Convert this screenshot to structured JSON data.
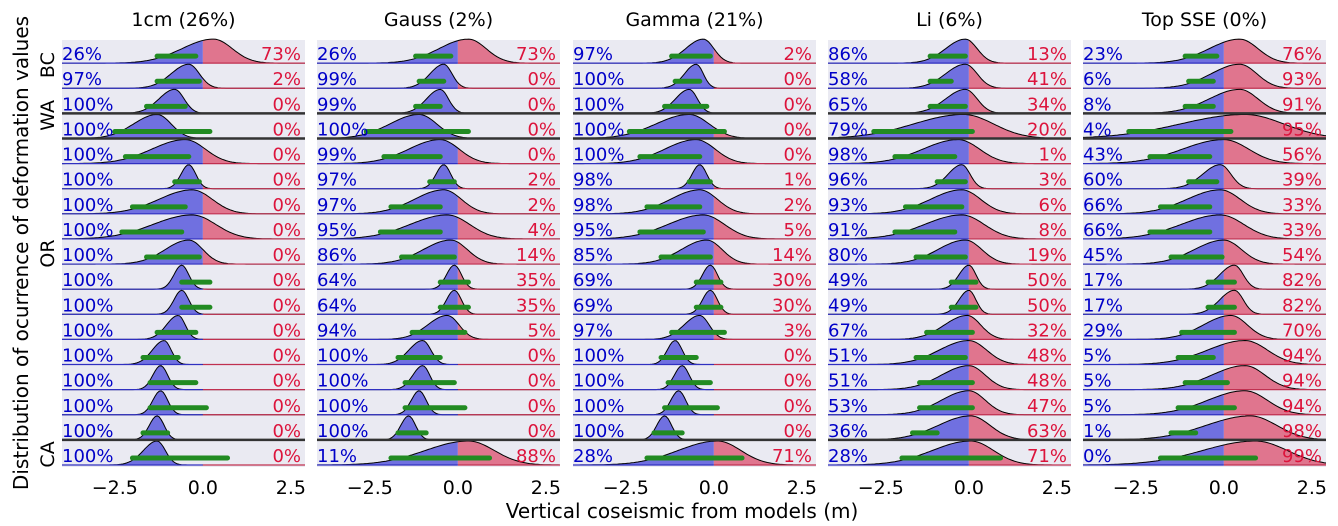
{
  "xlabel": "Vertical coseismic from models (m)",
  "ylabel": "Distribution of ocurrence of deformation values",
  "group_labels": [
    "BC",
    "WA",
    "OR",
    "CA"
  ],
  "chart_data": [
    {
      "type": "ridgeline",
      "title": "1cm (26%)",
      "xlim": [
        -4,
        2.9
      ],
      "xticks": [
        {
          "value": -2.5,
          "label": "−2.5"
        },
        {
          "value": 0,
          "label": "0.0"
        },
        {
          "value": 2.5,
          "label": "2.5"
        }
      ],
      "left": [
        26,
        97,
        100,
        100,
        100,
        100,
        100,
        100,
        100,
        100,
        100,
        100,
        100,
        100,
        100,
        100,
        100
      ],
      "left_labels": [
        "26%",
        "97%",
        "100%",
        "100%",
        "100%",
        "100%",
        "100%",
        "100%",
        "100%",
        "100%",
        "100%",
        "100%",
        "100%",
        "100%",
        "100%",
        "100%",
        "100%"
      ],
      "right": [
        73,
        2,
        0,
        0,
        0,
        0,
        0,
        0,
        0,
        0,
        0,
        0,
        0,
        0,
        0,
        0,
        0
      ],
      "right_labels": [
        "73%",
        "2%",
        "0%",
        "0%",
        "0%",
        "0%",
        "0%",
        "0%",
        "0%",
        "0%",
        "0%",
        "0%",
        "0%",
        "0%",
        "0%",
        "0%",
        "0%"
      ],
      "intervals": [
        [
          -1.3,
          -0.2
        ],
        [
          -1.3,
          -0.1
        ],
        [
          -1.6,
          -0.5
        ],
        [
          -2.5,
          0.2
        ],
        [
          -2.2,
          -0.4
        ],
        [
          -0.8,
          -0.1
        ],
        [
          -2.0,
          -0.5
        ],
        [
          -2.3,
          -0.6
        ],
        [
          -1.6,
          -0.1
        ],
        [
          -0.6,
          0.2
        ],
        [
          -0.6,
          0.2
        ],
        [
          -1.3,
          -0.2
        ],
        [
          -1.7,
          -0.7
        ],
        [
          -1.5,
          -0.2
        ],
        [
          -1.5,
          0.1
        ],
        [
          -1.7,
          -1.0
        ],
        [
          -2.0,
          0.7
        ]
      ],
      "modes": [
        0.3,
        -0.4,
        -0.8,
        -1.3,
        -0.5,
        -0.4,
        -0.3,
        -0.3,
        -0.4,
        -0.6,
        -0.6,
        -0.7,
        -1.1,
        -1.2,
        -1.2,
        -1.3,
        -1.3
      ]
    },
    {
      "type": "ridgeline",
      "title": "Gauss (2%)",
      "xlim": [
        -4,
        2.9
      ],
      "xticks": [
        {
          "value": -2.5,
          "label": "−2.5"
        },
        {
          "value": 0,
          "label": "0.0"
        },
        {
          "value": 2.5,
          "label": "2.5"
        }
      ],
      "left": [
        26,
        99,
        99,
        100,
        99,
        97,
        97,
        95,
        86,
        64,
        64,
        94,
        100,
        100,
        100,
        100,
        11
      ],
      "left_labels": [
        "26%",
        "99%",
        "99%",
        "100%",
        "99%",
        "97%",
        "97%",
        "95%",
        "86%",
        "64%",
        "64%",
        "94%",
        "100%",
        "100%",
        "100%",
        "100%",
        "11%"
      ],
      "right": [
        73,
        0,
        0,
        0,
        0,
        2,
        2,
        4,
        14,
        35,
        35,
        5,
        0,
        0,
        0,
        0,
        88
      ],
      "right_labels": [
        "73%",
        "0%",
        "0%",
        "0%",
        "0%",
        "2%",
        "2%",
        "4%",
        "14%",
        "35%",
        "35%",
        "5%",
        "0%",
        "0%",
        "0%",
        "0%",
        "88%"
      ],
      "intervals": [
        [
          -1.2,
          -0.2
        ],
        [
          -1.1,
          -0.4
        ],
        [
          -1.2,
          -0.5
        ],
        [
          -2.6,
          0.3
        ],
        [
          -2.1,
          -0.5
        ],
        [
          -0.8,
          -0.1
        ],
        [
          -1.9,
          -0.5
        ],
        [
          -2.2,
          -0.5
        ],
        [
          -1.6,
          -0.1
        ],
        [
          -0.5,
          0.3
        ],
        [
          -0.5,
          0.3
        ],
        [
          -1.3,
          0.2
        ],
        [
          -1.7,
          -0.5
        ],
        [
          -1.5,
          -0.1
        ],
        [
          -1.5,
          0.2
        ],
        [
          -1.7,
          -0.9
        ],
        [
          -1.9,
          0.9
        ]
      ],
      "modes": [
        0.3,
        -0.4,
        -0.5,
        -1.1,
        -0.5,
        -0.4,
        -0.4,
        -0.3,
        -0.2,
        -0.1,
        -0.1,
        -0.3,
        -1.0,
        -1.0,
        -1.1,
        -1.4,
        0.3
      ]
    },
    {
      "type": "ridgeline",
      "title": "Gamma (21%)",
      "xlim": [
        -4,
        2.9
      ],
      "xticks": [
        {
          "value": -2.5,
          "label": "−2.5"
        },
        {
          "value": 0,
          "label": "0.0"
        },
        {
          "value": 2.5,
          "label": "2.5"
        }
      ],
      "left": [
        97,
        100,
        100,
        100,
        100,
        98,
        98,
        95,
        85,
        69,
        69,
        97,
        100,
        100,
        100,
        100,
        28
      ],
      "left_labels": [
        "97%",
        "100%",
        "100%",
        "100%",
        "100%",
        "98%",
        "98%",
        "95%",
        "85%",
        "69%",
        "69%",
        "97%",
        "100%",
        "100%",
        "100%",
        "100%",
        "28%"
      ],
      "right": [
        2,
        0,
        0,
        0,
        0,
        1,
        2,
        5,
        14,
        30,
        30,
        3,
        0,
        0,
        0,
        0,
        71
      ],
      "right_labels": [
        "2%",
        "0%",
        "0%",
        "0%",
        "0%",
        "1%",
        "2%",
        "5%",
        "14%",
        "30%",
        "30%",
        "3%",
        "0%",
        "0%",
        "0%",
        "0%",
        "71%"
      ],
      "intervals": [
        [
          -1.2,
          -0.1
        ],
        [
          -1.1,
          -0.4
        ],
        [
          -1.4,
          -0.2
        ],
        [
          -2.4,
          0.3
        ],
        [
          -2.1,
          -0.4
        ],
        [
          -0.7,
          -0.1
        ],
        [
          -1.9,
          -0.4
        ],
        [
          -2.1,
          -0.3
        ],
        [
          -1.5,
          -0.1
        ],
        [
          -0.5,
          0.2
        ],
        [
          -0.5,
          0.2
        ],
        [
          -1.2,
          0.3
        ],
        [
          -1.5,
          -0.5
        ],
        [
          -1.3,
          -0.1
        ],
        [
          -1.4,
          0.1
        ],
        [
          -1.7,
          -0.9
        ],
        [
          -1.9,
          0.8
        ]
      ],
      "modes": [
        -0.3,
        -0.5,
        -0.7,
        -0.7,
        -0.5,
        -0.4,
        -0.4,
        -0.3,
        -0.2,
        -0.1,
        -0.1,
        -0.4,
        -1.1,
        -0.9,
        -1.0,
        -1.4,
        0.1
      ]
    },
    {
      "type": "ridgeline",
      "title": "Li (6%)",
      "xlim": [
        -4,
        2.9
      ],
      "xticks": [
        {
          "value": -2.5,
          "label": "−2.5"
        },
        {
          "value": 0,
          "label": "0.0"
        },
        {
          "value": 2.5,
          "label": "2.5"
        }
      ],
      "left": [
        86,
        58,
        65,
        79,
        98,
        96,
        93,
        91,
        80,
        49,
        49,
        67,
        51,
        51,
        53,
        36,
        28
      ],
      "left_labels": [
        "86%",
        "58%",
        "65%",
        "79%",
        "98%",
        "96%",
        "93%",
        "91%",
        "80%",
        "49%",
        "49%",
        "67%",
        "51%",
        "51%",
        "53%",
        "36%",
        "28%"
      ],
      "right": [
        13,
        41,
        34,
        20,
        1,
        3,
        6,
        8,
        19,
        50,
        50,
        32,
        48,
        48,
        47,
        63,
        71
      ],
      "right_labels": [
        "13%",
        "41%",
        "34%",
        "20%",
        "1%",
        "3%",
        "6%",
        "8%",
        "19%",
        "50%",
        "50%",
        "32%",
        "48%",
        "48%",
        "47%",
        "63%",
        "71%"
      ],
      "intervals": [
        [
          -1.1,
          -0.1
        ],
        [
          -1.1,
          -0.5
        ],
        [
          -1.1,
          -0.1
        ],
        [
          -2.7,
          0.1
        ],
        [
          -2.1,
          -0.4
        ],
        [
          -0.9,
          -0.1
        ],
        [
          -1.8,
          -0.2
        ],
        [
          -2.1,
          -0.4
        ],
        [
          -1.5,
          -0.1
        ],
        [
          -0.5,
          0.2
        ],
        [
          -0.5,
          0.2
        ],
        [
          -1.2,
          0.1
        ],
        [
          -1.5,
          -0.1
        ],
        [
          -1.4,
          0.1
        ],
        [
          -1.4,
          0.1
        ],
        [
          -1.6,
          -0.9
        ],
        [
          -1.9,
          0.9
        ]
      ],
      "modes": [
        -0.1,
        -0.1,
        -0.1,
        -0.15,
        -0.3,
        -0.2,
        -0.2,
        -0.2,
        -0.1,
        0,
        0,
        -0.05,
        0,
        0,
        0,
        0.05,
        0.05
      ]
    },
    {
      "type": "ridgeline",
      "title": "Top SSE (0%)",
      "xlim": [
        -4,
        2.9
      ],
      "xticks": [
        {
          "value": -2.5,
          "label": "−2.5"
        },
        {
          "value": 0,
          "label": "0.0"
        },
        {
          "value": 2.5,
          "label": "2.5"
        }
      ],
      "left": [
        23,
        6,
        8,
        4,
        43,
        60,
        66,
        66,
        45,
        17,
        17,
        29,
        5,
        5,
        5,
        1,
        0
      ],
      "left_labels": [
        "23%",
        "6%",
        "8%",
        "4%",
        "43%",
        "60%",
        "66%",
        "66%",
        "45%",
        "17%",
        "17%",
        "29%",
        "5%",
        "5%",
        "5%",
        "1%",
        "0%"
      ],
      "right": [
        76,
        93,
        91,
        95,
        56,
        39,
        33,
        33,
        54,
        82,
        82,
        70,
        94,
        94,
        94,
        98,
        99
      ],
      "right_labels": [
        "76%",
        "93%",
        "91%",
        "95%",
        "56%",
        "39%",
        "33%",
        "33%",
        "54%",
        "82%",
        "82%",
        "70%",
        "94%",
        "94%",
        "94%",
        "98%",
        "99%"
      ],
      "intervals": [
        [
          -1.1,
          -0.2
        ],
        [
          -1.0,
          -0.3
        ],
        [
          -1.1,
          -0.3
        ],
        [
          -2.7,
          0.2
        ],
        [
          -2.1,
          -0.4
        ],
        [
          -1.0,
          -0.2
        ],
        [
          -1.8,
          -0.4
        ],
        [
          -2.1,
          -0.4
        ],
        [
          -1.5,
          -0.05
        ],
        [
          -0.45,
          0.3
        ],
        [
          -0.45,
          0.3
        ],
        [
          -1.2,
          0.3
        ],
        [
          -1.3,
          -0.3
        ],
        [
          -1.1,
          0.1
        ],
        [
          -1.3,
          0.3
        ],
        [
          -1.5,
          -0.8
        ],
        [
          -1.8,
          0.9
        ]
      ],
      "modes": [
        0.45,
        0.45,
        0.45,
        0.6,
        0,
        -0.1,
        -0.1,
        -0.1,
        0,
        0.3,
        0.3,
        0.2,
        0.6,
        0.6,
        0.6,
        0.75,
        0.9
      ]
    }
  ]
}
